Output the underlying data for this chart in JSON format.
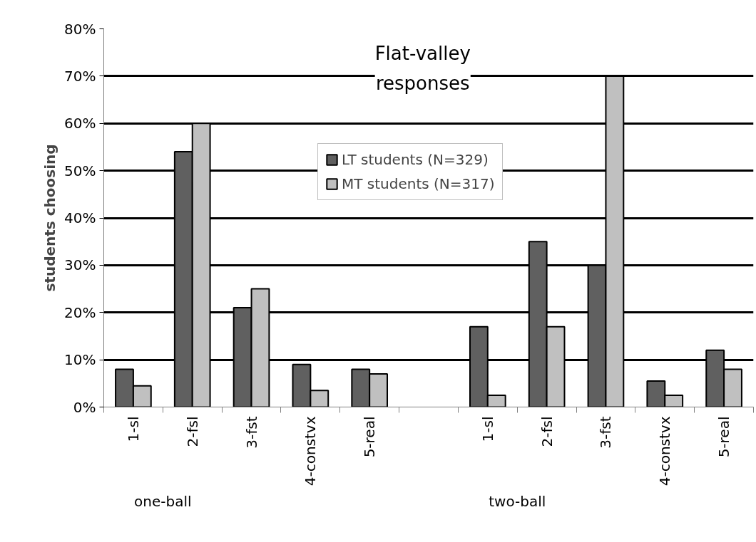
{
  "chart_data": {
    "type": "bar",
    "title": "Flat-valley responses",
    "ylabel": "students choosing",
    "categories": [
      "1-sl",
      "2-fsl",
      "3-fst",
      "4-constvx",
      "5-real",
      null,
      "1-sl",
      "2-fsl",
      "3-fst",
      "4-constvx",
      "5-real"
    ],
    "series": [
      {
        "name": "LT students (N=329)",
        "color": "#606060",
        "values": [
          8,
          54,
          21,
          9,
          8,
          null,
          17,
          35,
          30,
          5.5,
          12
        ]
      },
      {
        "name": "MT students (N=317)",
        "color": "#c0c0c0",
        "values": [
          4.5,
          60,
          25,
          3.5,
          7,
          null,
          2.5,
          17,
          70,
          2.5,
          8
        ]
      }
    ],
    "ylim": [
      0,
      80
    ],
    "yticks": [
      {
        "value": 0,
        "label": "0%"
      },
      {
        "value": 10,
        "label": "10%"
      },
      {
        "value": 20,
        "label": "20%"
      },
      {
        "value": 30,
        "label": "30%"
      },
      {
        "value": 40,
        "label": "40%"
      },
      {
        "value": 50,
        "label": "50%"
      },
      {
        "value": 60,
        "label": "60%"
      },
      {
        "value": 70,
        "label": "70%"
      },
      {
        "value": 80,
        "label": "80%"
      }
    ],
    "annotations": [
      "one-ball",
      "two-ball"
    ],
    "grid": "y",
    "legend": "top"
  }
}
